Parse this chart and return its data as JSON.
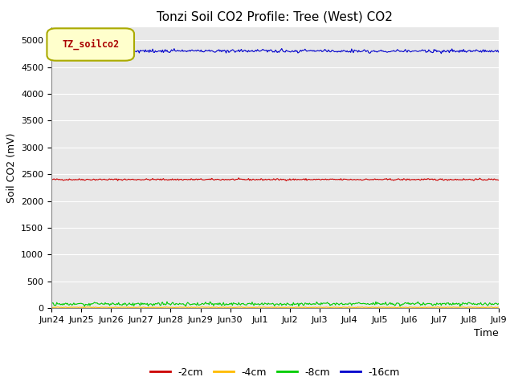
{
  "title": "Tonzi Soil CO2 Profile: Tree (West) CO2",
  "ylabel": "Soil CO2 (mV)",
  "xlabel": "Time",
  "ylim": [
    0,
    5250
  ],
  "plot_bg_color": "#e8e8e8",
  "fig_bg_color": "#ffffff",
  "line_2cm_value": 2400,
  "line_2cm_noise": 8,
  "line_4cm_value": 12,
  "line_4cm_noise": 3,
  "line_8cm_value": 75,
  "line_8cm_noise": 15,
  "line_16cm_value": 4800,
  "line_16cm_noise": 15,
  "color_2cm": "#cc0000",
  "color_4cm": "#ffbb00",
  "color_8cm": "#00cc00",
  "color_16cm": "#0000cc",
  "label_2cm": "-2cm",
  "label_4cm": "-4cm",
  "label_8cm": "-8cm",
  "label_16cm": "-16cm",
  "legend_label": "TZ_soilco2",
  "legend_bg": "#ffffcc",
  "legend_edge": "#aaaa00",
  "legend_text_color": "#aa0000",
  "n_points": 500,
  "yticks": [
    0,
    500,
    1000,
    1500,
    2000,
    2500,
    3000,
    3500,
    4000,
    4500,
    5000
  ],
  "title_fontsize": 11,
  "axis_label_fontsize": 9,
  "tick_fontsize": 8,
  "grid_color": "#ffffff",
  "grid_linewidth": 0.8
}
